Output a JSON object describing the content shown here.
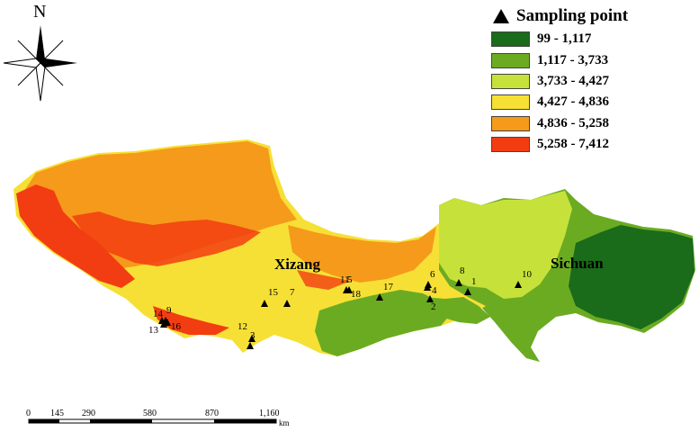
{
  "north_label": "N",
  "legend": {
    "title": "Sampling point",
    "items": [
      {
        "label": "99 - 1,117",
        "color": "#1a6b1a"
      },
      {
        "label": "1,117 - 3,733",
        "color": "#6bab22"
      },
      {
        "label": "3,733 - 4,427",
        "color": "#c6e23a"
      },
      {
        "label": "4,427 - 4,836",
        "color": "#f6e035"
      },
      {
        "label": "4,836 - 5,258",
        "color": "#f59a1a"
      },
      {
        "label": "5,258 - 7,412",
        "color": "#f23d12"
      }
    ]
  },
  "regions": [
    {
      "label": "Xizang"
    },
    {
      "label": "Sichuan"
    }
  ],
  "sampling_points": [
    {
      "label": "1"
    },
    {
      "label": "2"
    },
    {
      "label": "3"
    },
    {
      "label": "4"
    },
    {
      "label": "5"
    },
    {
      "label": "6"
    },
    {
      "label": "7"
    },
    {
      "label": "8"
    },
    {
      "label": "9"
    },
    {
      "label": "10"
    },
    {
      "label": "11"
    },
    {
      "label": "12"
    },
    {
      "label": "13"
    },
    {
      "label": "14"
    },
    {
      "label": "15"
    },
    {
      "label": "16"
    },
    {
      "label": "17"
    },
    {
      "label": "18"
    }
  ],
  "scale_bar": {
    "labels": [
      "0",
      "145",
      "290",
      "580",
      "870",
      "1,160"
    ],
    "unit": "km"
  }
}
